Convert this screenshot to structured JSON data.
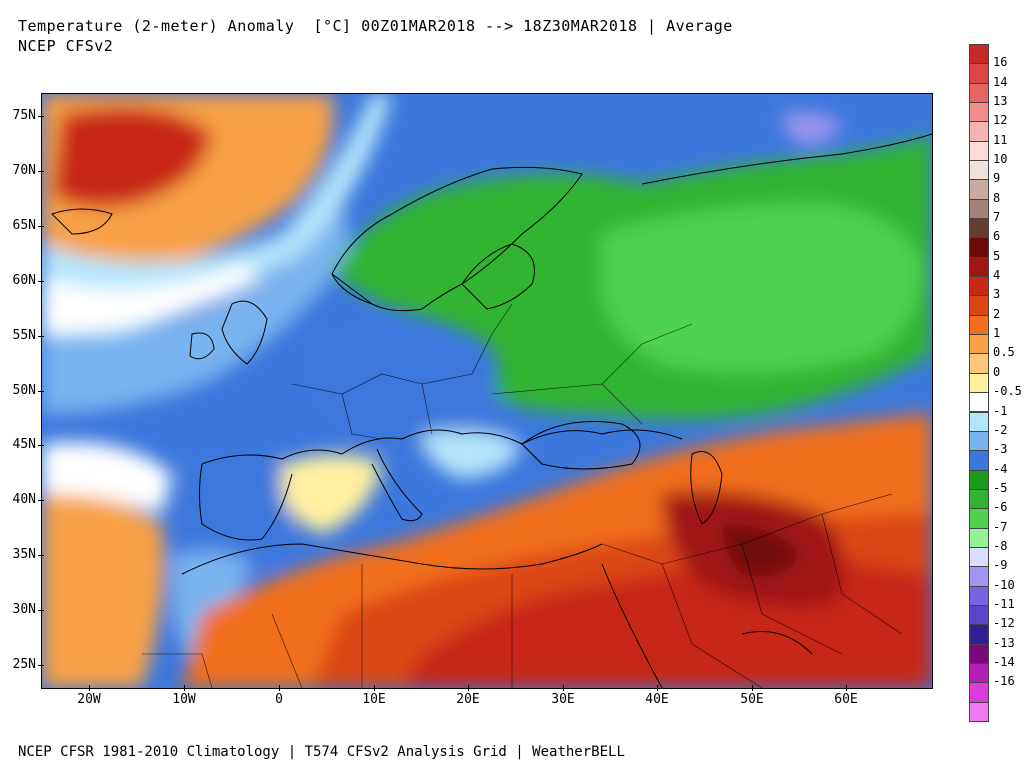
{
  "header": {
    "line1": "Temperature (2-meter) Anomaly  [°C] 00Z01MAR2018 --> 18Z30MAR2018 | Average",
    "line2": "NCEP CFSv2"
  },
  "footer": {
    "text": "NCEP CFSR 1981-2010 Climatology | T574 CFSv2 Analysis Grid | WeatherBELL"
  },
  "axes": {
    "lat_labels": [
      "75N",
      "70N",
      "65N",
      "60N",
      "55N",
      "50N",
      "45N",
      "40N",
      "35N",
      "30N",
      "25N"
    ],
    "lon_labels": [
      "20W",
      "10W",
      "0",
      "10E",
      "20E",
      "30E",
      "40E",
      "50E",
      "60E"
    ]
  },
  "colorbar": {
    "labels": [
      "16",
      "14",
      "13",
      "12",
      "11",
      "10",
      "9",
      "8",
      "7",
      "6",
      "5",
      "4",
      "3",
      "2",
      "1",
      "0.5",
      "0",
      "-0.5",
      "-1",
      "-2",
      "-3",
      "-4",
      "-5",
      "-6",
      "-7",
      "-8",
      "-9",
      "-10",
      "-11",
      "-12",
      "-13",
      "-14",
      "-16"
    ],
    "colors": [
      "#c82828",
      "#dc4646",
      "#e66464",
      "#f08c8c",
      "#f5b4b4",
      "#fadcdc",
      "#f0e1dc",
      "#c8aaa0",
      "#a08278",
      "#643c32",
      "#6e0a0a",
      "#a01414",
      "#c82814",
      "#dc4614",
      "#f06e1e",
      "#f7a046",
      "#fac878",
      "#fff0a0",
      "#ffffff",
      "#b4e6fa",
      "#78b4f0",
      "#3c78dc",
      "#1e9b1e",
      "#32b432",
      "#50d250",
      "#96f096",
      "#dcdcff",
      "#a096f0",
      "#7864e1",
      "#5a46c8",
      "#321e96",
      "#780a78",
      "#b41eb4",
      "#dc3cdc",
      "#f078f0"
    ]
  },
  "map": {
    "name": "Europe / North Africa / Middle East temperature anomaly",
    "colors": {
      "ocean_cold": "#3c78dc",
      "ocean_cool": "#78b4f0",
      "cool_light": "#b4e6fa",
      "near_zero": "#ffffff",
      "warm_light": "#fff0a0",
      "warm": "#f7a046",
      "warmer": "#f06e1e",
      "hot": "#dc4614",
      "hotter": "#c82814",
      "hottest": "#a01414",
      "extreme": "#6e0a0a",
      "cold_green": "#1e9b1e",
      "colder_green": "#32b432",
      "coldest_green": "#50d250",
      "very_cold": "#96f096",
      "purple": "#a096f0"
    }
  }
}
